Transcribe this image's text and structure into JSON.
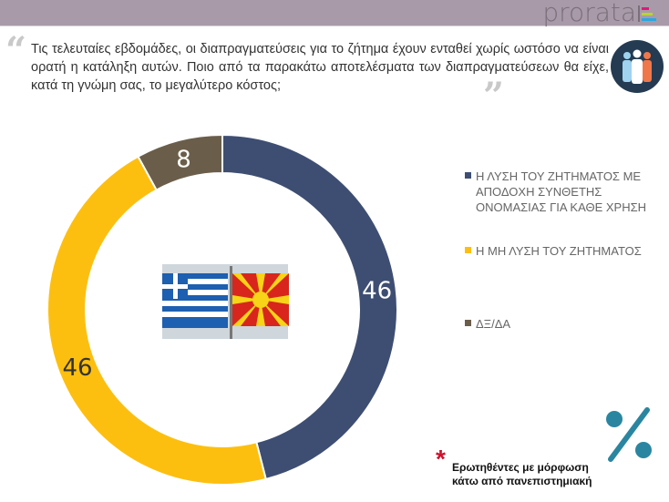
{
  "header": {
    "logo_text": "prorata"
  },
  "question": {
    "text": "Τις τελευταίες εβδομάδες, οι διαπραγματεύσεις για το ζήτημα έχουν ενταθεί χωρίς ωστόσο να είναι ορατή η κατάληξη αυτών. Ποιο από τα παρακάτω αποτελέσματα των διαπραγματεύσεων θα είχε, κατά τη γνώμη σας, το μεγαλύτερο κόστος;",
    "icon": "people-group-icon"
  },
  "chart_data": {
    "type": "pie",
    "donut": true,
    "categories": [
      "Η ΛΥΣΗ ΤΟΥ ΖΗΤΗΜΑΤΟΣ ΜΕ ΑΠΟΔΟΧΗ ΣΥΝΘΕΤΗΣ ΟΝΟΜΑΣΙΑΣ ΓΙΑ ΚΑΘΕ ΧΡΗΣΗ",
      "Η ΜΗ ΛΥΣΗ ΤΟΥ ΖΗΤΗΜΑΤΟΣ",
      "ΔΞ/ΔΑ"
    ],
    "values": [
      46,
      46,
      8
    ],
    "data_labels": [
      "46",
      "46",
      "8"
    ],
    "colors": [
      "#3e4e72",
      "#fdbf0f",
      "#6a5e4b"
    ],
    "legend_placement": "right"
  },
  "footnote": "Ερωτηθέντες με μόρφωση κάτω από πανεπιστημιακή",
  "accent_color": "#2a86a0"
}
